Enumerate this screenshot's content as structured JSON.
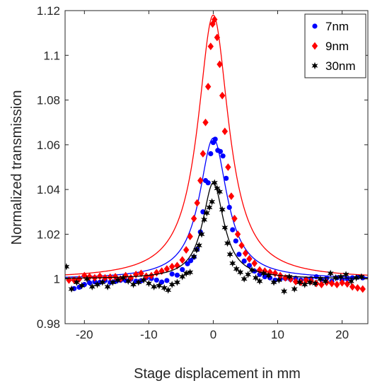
{
  "chart_data": {
    "type": "scatter",
    "title": "",
    "xlabel": "Stage displacement in mm",
    "ylabel": "Normalized transmission",
    "xlim": [
      -23,
      24
    ],
    "ylim": [
      0.98,
      1.12
    ],
    "xticks": [
      -20,
      -10,
      0,
      10,
      20
    ],
    "xtick_labels": [
      "-20",
      "-10",
      "0",
      "10",
      "20"
    ],
    "yticks": [
      0.98,
      1.0,
      1.02,
      1.04,
      1.06,
      1.08,
      1.1,
      1.12
    ],
    "ytick_labels": [
      "0.98",
      "1",
      "1.02",
      "1.04",
      "1.06",
      "1.08",
      "1.1",
      "1.12"
    ],
    "grid": false,
    "legend_position": "top-right",
    "series": [
      {
        "name": "7nm",
        "color": "#0000ff",
        "marker": "circle",
        "fit_peak": 1.063,
        "fit_width": 2.6,
        "fit_baseline": 1.0,
        "points": [
          [
            -21.6,
            0.9957
          ],
          [
            -20.8,
            0.9963
          ],
          [
            -20.0,
            0.9975
          ],
          [
            -19.2,
            0.9983
          ],
          [
            -18.4,
            0.9987
          ],
          [
            -17.6,
            0.9985
          ],
          [
            -16.8,
            0.9993
          ],
          [
            -16.0,
            0.9985
          ],
          [
            -15.2,
            0.9989
          ],
          [
            -14.4,
            0.9994
          ],
          [
            -13.6,
            0.9993
          ],
          [
            -12.8,
            0.9999
          ],
          [
            -12.0,
            0.999
          ],
          [
            -11.2,
            0.9992
          ],
          [
            -10.4,
            1.0005
          ],
          [
            -9.6,
            1.0002
          ],
          [
            -8.8,
            0.9995
          ],
          [
            -8.0,
            0.9986
          ],
          [
            -7.2,
            0.9993
          ],
          [
            -6.4,
            1.0022
          ],
          [
            -5.6,
            1.0017
          ],
          [
            -4.8,
            1.0042
          ],
          [
            -4.0,
            1.0068
          ],
          [
            -3.5,
            1.0082
          ],
          [
            -3.0,
            1.0098
          ],
          [
            -2.5,
            1.0132
          ],
          [
            -2.0,
            1.021
          ],
          [
            -1.6,
            1.03
          ],
          [
            -1.2,
            1.044
          ],
          [
            -0.8,
            1.043
          ],
          [
            -0.4,
            1.056
          ],
          [
            0.0,
            1.061
          ],
          [
            0.3,
            1.0625
          ],
          [
            0.7,
            1.0575
          ],
          [
            1.1,
            1.057
          ],
          [
            1.5,
            1.055
          ],
          [
            2.0,
            1.045
          ],
          [
            2.5,
            1.032
          ],
          [
            3.0,
            1.022
          ],
          [
            3.5,
            1.017
          ],
          [
            4.0,
            1.011
          ],
          [
            4.8,
            1.008
          ],
          [
            5.6,
            1.006
          ],
          [
            6.4,
            1.0035
          ],
          [
            7.2,
            1.002
          ],
          [
            8.0,
            1.001
          ],
          [
            8.8,
            1.0005
          ],
          [
            9.6,
            0.9995
          ],
          [
            10.4,
            1.0
          ],
          [
            11.2,
            1.0002
          ],
          [
            12.0,
            0.9998
          ],
          [
            12.8,
            1.0003
          ],
          [
            13.6,
            0.9995
          ],
          [
            14.4,
            1.0
          ],
          [
            15.2,
            1.0002
          ],
          [
            16.0,
            1.001
          ],
          [
            16.8,
            0.9998
          ],
          [
            17.6,
            1.0003
          ],
          [
            18.4,
            0.999
          ],
          [
            19.2,
            1.0005
          ],
          [
            20.0,
            0.9996
          ],
          [
            20.8,
            1.0
          ],
          [
            21.6,
            1.0005
          ],
          [
            22.4,
            1.0008
          ],
          [
            23.2,
            1.0005
          ]
        ]
      },
      {
        "name": "9nm",
        "color": "#ff0000",
        "marker": "diamond",
        "fit_peak": 1.118,
        "fit_width": 2.9,
        "fit_baseline": 1.0,
        "points": [
          [
            -22.4,
            0.9995
          ],
          [
            -21.6,
            0.9995
          ],
          [
            -20.8,
            1.0
          ],
          [
            -20.0,
            1.0015
          ],
          [
            -19.2,
            1.001
          ],
          [
            -18.4,
            1.0005
          ],
          [
            -17.6,
            1.0012
          ],
          [
            -16.8,
            1.0005
          ],
          [
            -16.0,
            1.0008
          ],
          [
            -15.2,
            1.001
          ],
          [
            -14.4,
            1.0
          ],
          [
            -13.6,
            1.0015
          ],
          [
            -12.8,
            1.0005
          ],
          [
            -12.0,
            1.002
          ],
          [
            -11.2,
            1.0025
          ],
          [
            -10.4,
            1.0012
          ],
          [
            -9.6,
            1.0015
          ],
          [
            -8.8,
            1.0028
          ],
          [
            -8.0,
            1.0035
          ],
          [
            -7.2,
            1.0045
          ],
          [
            -6.4,
            1.0055
          ],
          [
            -5.6,
            1.006
          ],
          [
            -4.8,
            1.0085
          ],
          [
            -4.2,
            1.013
          ],
          [
            -3.6,
            1.019
          ],
          [
            -3.0,
            1.027
          ],
          [
            -2.5,
            1.034
          ],
          [
            -2.0,
            1.044
          ],
          [
            -1.6,
            1.056
          ],
          [
            -1.2,
            1.07
          ],
          [
            -0.8,
            1.086
          ],
          [
            -0.4,
            1.104
          ],
          [
            -0.1,
            1.114
          ],
          [
            0.2,
            1.116
          ],
          [
            0.6,
            1.108
          ],
          [
            1.0,
            1.096
          ],
          [
            1.4,
            1.082
          ],
          [
            1.8,
            1.066
          ],
          [
            2.3,
            1.05
          ],
          [
            2.8,
            1.037
          ],
          [
            3.3,
            1.027
          ],
          [
            3.8,
            1.02
          ],
          [
            4.4,
            1.015
          ],
          [
            5.0,
            1.0115
          ],
          [
            5.6,
            1.009
          ],
          [
            6.4,
            1.007
          ],
          [
            7.2,
            1.004
          ],
          [
            8.0,
            1.0035
          ],
          [
            8.8,
            1.003
          ],
          [
            9.6,
            1.0025
          ],
          [
            10.4,
            1.0015
          ],
          [
            11.2,
            1.0005
          ],
          [
            12.0,
            1.0
          ],
          [
            12.8,
            0.9988
          ],
          [
            13.6,
            0.9985
          ],
          [
            14.4,
            0.9995
          ],
          [
            15.2,
            0.999
          ],
          [
            16.0,
            0.998
          ],
          [
            16.8,
            0.9975
          ],
          [
            17.6,
            0.9985
          ],
          [
            18.4,
            0.998
          ],
          [
            19.2,
            0.9975
          ],
          [
            20.0,
            0.9983
          ],
          [
            20.8,
            0.9978
          ],
          [
            21.6,
            0.9965
          ],
          [
            22.4,
            0.996
          ],
          [
            23.2,
            0.9955
          ]
        ]
      },
      {
        "name": "30nm",
        "color": "#000000",
        "marker": "hexagram",
        "fit_peak": 1.043,
        "fit_width": 2.0,
        "fit_baseline": 1.0,
        "points": [
          [
            -22.8,
            1.0055
          ],
          [
            -22.0,
            0.9955
          ],
          [
            -21.2,
            0.9985
          ],
          [
            -20.4,
            0.997
          ],
          [
            -19.6,
            1.0
          ],
          [
            -18.8,
            0.9965
          ],
          [
            -18.0,
            0.9975
          ],
          [
            -17.2,
            0.9985
          ],
          [
            -16.4,
            0.9965
          ],
          [
            -15.6,
            0.9985
          ],
          [
            -14.8,
            0.9995
          ],
          [
            -14.0,
            1.0005
          ],
          [
            -13.2,
            0.999
          ],
          [
            -12.4,
            0.9975
          ],
          [
            -11.6,
            0.9985
          ],
          [
            -10.8,
            0.9995
          ],
          [
            -10.0,
            0.998
          ],
          [
            -9.2,
            0.9965
          ],
          [
            -8.4,
            0.997
          ],
          [
            -7.6,
            0.996
          ],
          [
            -7.0,
            0.995
          ],
          [
            -6.4,
            0.9975
          ],
          [
            -5.6,
            0.9985
          ],
          [
            -4.8,
            1.001
          ],
          [
            -4.2,
            1.0025
          ],
          [
            -3.6,
            1.003
          ],
          [
            -3.0,
            1.01
          ],
          [
            -2.6,
            1.013
          ],
          [
            -2.2,
            1.015
          ],
          [
            -1.8,
            1.02
          ],
          [
            -1.4,
            1.0265
          ],
          [
            -1.0,
            1.0295
          ],
          [
            -0.6,
            1.032
          ],
          [
            -0.2,
            1.0345
          ],
          [
            0.2,
            1.043
          ],
          [
            0.6,
            1.0405
          ],
          [
            1.0,
            1.039
          ],
          [
            1.4,
            1.031
          ],
          [
            1.8,
            1.023
          ],
          [
            2.2,
            1.016
          ],
          [
            2.6,
            1.011
          ],
          [
            3.0,
            1.007
          ],
          [
            3.6,
            1.0045
          ],
          [
            4.2,
            1.003
          ],
          [
            4.8,
            1.0
          ],
          [
            5.4,
            1.002
          ],
          [
            6.0,
            1.004
          ],
          [
            6.6,
            1.0005
          ],
          [
            7.2,
            0.999
          ],
          [
            7.8,
            1.0025
          ],
          [
            8.6,
            1.0015
          ],
          [
            9.4,
            0.9985
          ],
          [
            10.2,
            0.9995
          ],
          [
            11.0,
            0.9945
          ],
          [
            11.8,
            1.001
          ],
          [
            12.6,
            0.9955
          ],
          [
            13.4,
            0.9985
          ],
          [
            14.2,
            0.9975
          ],
          [
            15.0,
            0.9985
          ],
          [
            15.8,
            0.998
          ],
          [
            16.6,
            1.0
          ],
          [
            17.4,
            0.999
          ],
          [
            18.2,
            1.0025
          ],
          [
            19.0,
            1.0005
          ],
          [
            19.8,
            1.001
          ],
          [
            20.6,
            1.002
          ],
          [
            21.4,
            0.999
          ],
          [
            22.2,
            1.0005
          ],
          [
            23.0,
            1.001
          ]
        ]
      }
    ]
  }
}
